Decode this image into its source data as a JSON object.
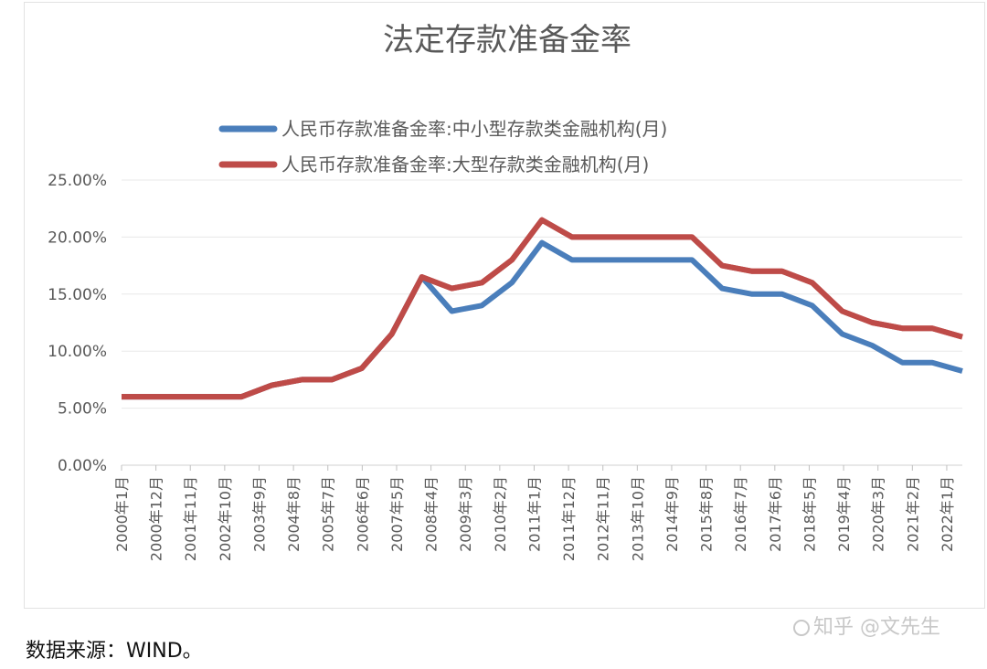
{
  "chart_data": {
    "type": "line",
    "title": "法定存款准备金率",
    "xlabel": "",
    "ylabel": "",
    "ylim": [
      0,
      25
    ],
    "y_ticks": [
      "0.00%",
      "5.00%",
      "10.00%",
      "15.00%",
      "20.00%",
      "25.00%"
    ],
    "grid": true,
    "legend_position": "top",
    "x_tick_labels": [
      "2000年1月",
      "2000年12月",
      "2001年11月",
      "2002年10月",
      "2003年9月",
      "2004年8月",
      "2005年7月",
      "2006年6月",
      "2007年5月",
      "2008年4月",
      "2009年3月",
      "2010年2月",
      "2011年1月",
      "2011年12月",
      "2012年11月",
      "2013年10月",
      "2014年9月",
      "2015年8月",
      "2016年7月",
      "2017年6月",
      "2018年5月",
      "2019年4月",
      "2020年3月",
      "2021年2月",
      "2022年1月"
    ],
    "series": [
      {
        "name": "人民币存款准备金率:中小型存款类金融机构(月)",
        "color": "#4A7EBB",
        "points": [
          [
            0,
            6.0
          ],
          [
            1,
            6.0
          ],
          [
            2,
            6.0
          ],
          [
            3,
            6.0
          ],
          [
            4,
            6.0
          ],
          [
            5,
            7.0
          ],
          [
            6,
            7.5
          ],
          [
            7,
            7.5
          ],
          [
            8,
            8.5
          ],
          [
            9,
            11.5
          ],
          [
            10,
            16.5
          ],
          [
            11,
            13.5
          ],
          [
            12,
            14.0
          ],
          [
            13,
            16.0
          ],
          [
            14,
            19.5
          ],
          [
            15,
            18.0
          ],
          [
            16,
            18.0
          ],
          [
            17,
            18.0
          ],
          [
            18,
            18.0
          ],
          [
            19,
            18.0
          ],
          [
            20,
            15.5
          ],
          [
            21,
            15.0
          ],
          [
            22,
            15.0
          ],
          [
            23,
            14.0
          ],
          [
            24,
            11.5
          ],
          [
            25,
            10.5
          ],
          [
            26,
            9.0
          ],
          [
            27,
            9.0
          ],
          [
            28,
            8.25
          ]
        ]
      },
      {
        "name": "人民币存款准备金率:大型存款类金融机构(月)",
        "color": "#BE4B48",
        "points": [
          [
            0,
            6.0
          ],
          [
            1,
            6.0
          ],
          [
            2,
            6.0
          ],
          [
            3,
            6.0
          ],
          [
            4,
            6.0
          ],
          [
            5,
            7.0
          ],
          [
            6,
            7.5
          ],
          [
            7,
            7.5
          ],
          [
            8,
            8.5
          ],
          [
            9,
            11.5
          ],
          [
            10,
            16.5
          ],
          [
            11,
            15.5
          ],
          [
            12,
            16.0
          ],
          [
            13,
            18.0
          ],
          [
            14,
            21.5
          ],
          [
            15,
            20.0
          ],
          [
            16,
            20.0
          ],
          [
            17,
            20.0
          ],
          [
            18,
            20.0
          ],
          [
            19,
            20.0
          ],
          [
            20,
            17.5
          ],
          [
            21,
            17.0
          ],
          [
            22,
            17.0
          ],
          [
            23,
            16.0
          ],
          [
            24,
            13.5
          ],
          [
            25,
            12.5
          ],
          [
            26,
            12.0
          ],
          [
            27,
            12.0
          ],
          [
            28,
            11.25
          ]
        ]
      }
    ]
  },
  "footer": {
    "source": "数据来源：WIND。"
  },
  "watermark": {
    "text": "知乎 @文先生"
  }
}
